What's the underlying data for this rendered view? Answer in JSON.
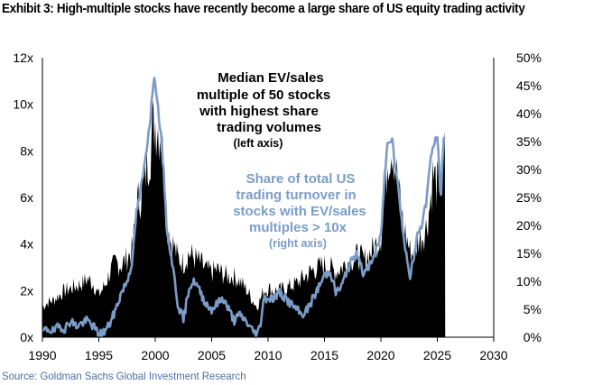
{
  "title": "Exhibit 3: High-multiple stocks have recently become a large share of US equity trading activity",
  "source": "Source: Goldman Sachs Global Investment Research",
  "colors": {
    "ev_sales": "#000000",
    "share": "#7b9cc8",
    "axis": "#000000"
  },
  "chart_data": {
    "type": "area",
    "title": "Exhibit 3: High-multiple stocks have recently become a large share of US equity trading activity",
    "xlim": [
      1990,
      2030
    ],
    "ylim_left": [
      0,
      12
    ],
    "ylim_right": [
      0,
      50
    ],
    "x_ticks": [
      "1990",
      "1995",
      "2000",
      "2005",
      "2010",
      "2015",
      "2020",
      "2025",
      "2030"
    ],
    "y_ticks_left": [
      "0x",
      "2x",
      "4x",
      "6x",
      "8x",
      "10x",
      "12x"
    ],
    "y_ticks_right": [
      "0%",
      "5%",
      "10%",
      "15%",
      "20%",
      "25%",
      "30%",
      "35%",
      "40%",
      "45%",
      "50%"
    ],
    "annotations": {
      "ev_sales": [
        "Median EV/sales",
        "multiple of 50 stocks",
        "with highest share",
        "trading volumes"
      ],
      "ev_sales_axis": "(left axis)",
      "share": [
        "Share of total US",
        "trading turnover in",
        "stocks with EV/sales",
        "multiples > 10x"
      ],
      "share_axis": "(right axis)"
    },
    "series": [
      {
        "name": "Median EV/sales multiple of 50 stocks with highest share trading volumes",
        "axis": "left",
        "style": "area",
        "x": [
          1990,
          1990.5,
          1991,
          1991.5,
          1992,
          1992.5,
          1993,
          1993.5,
          1994,
          1994.5,
          1995,
          1995.5,
          1996,
          1996.5,
          1997,
          1997.5,
          1998,
          1998.3,
          1998.6,
          1999,
          1999.3,
          1999.6,
          1999.8,
          2000,
          2000.2,
          2000.5,
          2000.8,
          2001,
          2001.3,
          2001.6,
          2002,
          2002.5,
          2003,
          2003.5,
          2004,
          2004.5,
          2005,
          2005.5,
          2006,
          2006.5,
          2007,
          2007.5,
          2008,
          2008.5,
          2009,
          2009.3,
          2009.6,
          2010,
          2010.5,
          2011,
          2011.5,
          2012,
          2012.5,
          2013,
          2013.5,
          2014,
          2014.5,
          2015,
          2015.5,
          2016,
          2016.5,
          2017,
          2017.5,
          2018,
          2018.5,
          2019,
          2019.5,
          2020,
          2020.3,
          2020.6,
          2021,
          2021.3,
          2021.6,
          2022,
          2022.3,
          2022.6,
          2023,
          2023.3,
          2023.6,
          2024,
          2024.3,
          2024.6,
          2025,
          2025.3,
          2025.6
        ],
        "values": [
          1.3,
          1.5,
          1.6,
          1.8,
          2.0,
          2.1,
          2.2,
          2.3,
          2.5,
          2.3,
          1.8,
          2.2,
          2.8,
          3.2,
          3.1,
          3.4,
          3.8,
          5.5,
          6.0,
          6.6,
          7.5,
          8.2,
          9.0,
          9.3,
          9.1,
          8.8,
          7.2,
          4.8,
          4.2,
          4.0,
          3.4,
          3.2,
          3.6,
          3.4,
          3.2,
          2.9,
          2.8,
          2.9,
          2.7,
          2.6,
          2.6,
          2.4,
          2.1,
          1.7,
          1.3,
          1.6,
          2.0,
          2.1,
          2.0,
          2.0,
          2.1,
          2.2,
          2.3,
          2.5,
          2.7,
          2.9,
          3.0,
          3.1,
          3.0,
          2.8,
          3.0,
          3.2,
          3.4,
          3.5,
          3.3,
          3.6,
          3.9,
          4.4,
          5.8,
          7.8,
          8.3,
          7.4,
          6.2,
          4.8,
          4.2,
          3.7,
          3.5,
          4.2,
          4.3,
          4.7,
          5.5,
          7.0,
          6.5,
          7.0,
          7.8
        ],
        "x_end": 2025.7
      },
      {
        "name": "Share of total US trading turnover in stocks with EV/sales multiples > 10x",
        "axis": "right",
        "style": "line",
        "x": [
          1990,
          1990.5,
          1991,
          1991.5,
          1992,
          1992.5,
          1993,
          1993.5,
          1994,
          1994.5,
          1995,
          1995.5,
          1996,
          1996.5,
          1997,
          1997.5,
          1998,
          1998.3,
          1998.6,
          1999,
          1999.3,
          1999.6,
          1999.8,
          2000,
          2000.2,
          2000.5,
          2000.8,
          2001,
          2001.3,
          2001.6,
          2002,
          2002.5,
          2003,
          2003.5,
          2004,
          2004.5,
          2005,
          2005.5,
          2006,
          2006.5,
          2007,
          2007.5,
          2008,
          2008.5,
          2009,
          2009.3,
          2009.6,
          2010,
          2010.5,
          2011,
          2011.5,
          2012,
          2012.5,
          2013,
          2013.5,
          2014,
          2014.5,
          2015,
          2015.5,
          2016,
          2016.5,
          2017,
          2017.5,
          2018,
          2018.5,
          2019,
          2019.5,
          2020,
          2020.3,
          2020.6,
          2021,
          2021.3,
          2021.6,
          2022,
          2022.3,
          2022.6,
          2023,
          2023.3,
          2023.6,
          2024,
          2024.3,
          2024.6,
          2025,
          2025.3,
          2025.6
        ],
        "values": [
          1,
          1.5,
          1,
          2,
          1.5,
          3,
          2,
          2.5,
          3,
          2,
          0.5,
          1,
          2.5,
          5,
          8,
          10,
          14,
          22,
          25,
          30,
          35,
          40,
          45,
          46,
          42,
          36,
          28,
          20,
          16,
          12,
          6,
          3,
          9,
          10,
          8,
          6,
          5,
          6,
          7,
          5,
          3,
          4,
          3,
          1.5,
          0.5,
          2,
          7,
          7,
          7,
          8,
          7,
          6,
          5,
          4,
          5,
          7,
          9,
          11,
          12,
          8,
          9,
          12,
          14,
          15,
          11,
          13,
          15,
          18,
          28,
          35,
          36,
          30,
          26,
          18,
          14,
          11,
          15,
          19,
          20,
          24,
          30,
          34,
          36,
          25,
          36
        ],
        "x_end": 2025.6
      }
    ]
  }
}
